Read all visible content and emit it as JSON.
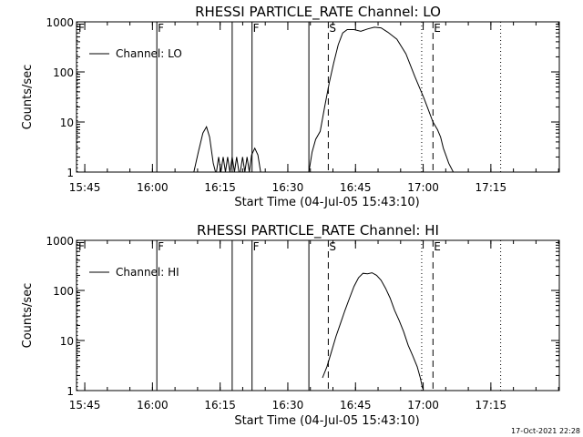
{
  "chart_data": [
    {
      "type": "line",
      "title": "RHESSI PARTICLE_RATE Channel: LO",
      "xlabel": "Start Time (04-Jul-05 15:43:10)",
      "ylabel": "Counts/sec",
      "y_scale": "log",
      "ylim": [
        1,
        1000
      ],
      "y_ticks": [
        1,
        10,
        100,
        1000
      ],
      "y_tick_labels": [
        "1",
        "10",
        "100",
        "1000"
      ],
      "x_unit": "minutes since 15:43:10",
      "xlim": [
        0,
        107
      ],
      "x_ticks": [
        1.83,
        16.83,
        31.83,
        46.83,
        61.83,
        76.83,
        91.83
      ],
      "x_tick_labels": [
        "15:45",
        "16:00",
        "16:15",
        "16:30",
        "16:45",
        "17:00",
        "17:15"
      ],
      "legend": {
        "position": "top-left",
        "entries": [
          "Channel: LO"
        ]
      },
      "series": [
        {
          "name": "Channel: LO",
          "segments": [
            [
              [
                26.0,
                1
              ],
              [
                27.0,
                2.5
              ],
              [
                28.0,
                6.0
              ],
              [
                28.8,
                8.0
              ],
              [
                29.5,
                5.0
              ],
              [
                30.3,
                1.5
              ],
              [
                30.8,
                1.0
              ]
            ],
            [
              [
                31.0,
                1
              ],
              [
                31.5,
                2
              ],
              [
                32.0,
                1
              ],
              [
                32.5,
                2
              ],
              [
                33.0,
                1
              ],
              [
                33.5,
                2
              ],
              [
                34.0,
                1
              ],
              [
                34.5,
                2
              ],
              [
                35.0,
                1
              ],
              [
                35.5,
                2
              ],
              [
                36.0,
                1
              ]
            ],
            [
              [
                36.3,
                1
              ],
              [
                36.8,
                2
              ],
              [
                37.3,
                1
              ],
              [
                37.8,
                2
              ],
              [
                38.3,
                1
              ],
              [
                38.8,
                2.2
              ],
              [
                39.5,
                3.0
              ],
              [
                40.2,
                2.2
              ],
              [
                40.8,
                1
              ]
            ],
            [
              [
                51.5,
                1.0
              ],
              [
                52.2,
                2.5
              ],
              [
                53.0,
                4.5
              ],
              [
                54.0,
                6.5
              ],
              [
                55.0,
                20
              ],
              [
                56.0,
                60
              ],
              [
                57.0,
                150
              ],
              [
                58.0,
                350
              ],
              [
                59.0,
                600
              ],
              [
                60.0,
                700
              ],
              [
                61.5,
                700
              ],
              [
                63.0,
                650
              ],
              [
                64.5,
                720
              ],
              [
                66.0,
                780
              ],
              [
                67.5,
                760
              ],
              [
                69.0,
                620
              ],
              [
                71.0,
                450
              ],
              [
                73.0,
                230
              ],
              [
                75.0,
                80
              ],
              [
                77.0,
                30
              ],
              [
                79.0,
                10
              ],
              [
                80.0,
                7
              ],
              [
                80.7,
                5
              ],
              [
                81.3,
                3
              ],
              [
                82.0,
                2
              ],
              [
                82.5,
                1.5
              ],
              [
                83.5,
                1.0
              ]
            ]
          ]
        }
      ],
      "annotations": [
        {
          "label": "F",
          "x": 0.2,
          "style": "dotted"
        },
        {
          "label": "F",
          "x": 17.8,
          "style": "solid"
        },
        {
          "label": "",
          "x": 34.5,
          "style": "solid"
        },
        {
          "label": "F",
          "x": 38.9,
          "style": "solid"
        },
        {
          "label": "",
          "x": 51.5,
          "style": "solid"
        },
        {
          "label": "S",
          "x": 55.8,
          "style": "dashed"
        },
        {
          "label": "",
          "x": 76.5,
          "style": "dotted"
        },
        {
          "label": "E",
          "x": 79.0,
          "style": "dashed"
        },
        {
          "label": "",
          "x": 94.0,
          "style": "dotted"
        }
      ]
    },
    {
      "type": "line",
      "title": "RHESSI PARTICLE_RATE Channel: HI",
      "xlabel": "Start Time (04-Jul-05 15:43:10)",
      "ylabel": "Counts/sec",
      "y_scale": "log",
      "ylim": [
        1,
        1000
      ],
      "y_ticks": [
        1,
        10,
        100,
        1000
      ],
      "y_tick_labels": [
        "1",
        "10",
        "100",
        "1000"
      ],
      "x_unit": "minutes since 15:43:10",
      "xlim": [
        0,
        107
      ],
      "x_ticks": [
        1.83,
        16.83,
        31.83,
        46.83,
        61.83,
        76.83,
        91.83
      ],
      "x_tick_labels": [
        "15:45",
        "16:00",
        "16:15",
        "16:30",
        "16:45",
        "17:00",
        "17:15"
      ],
      "legend": {
        "position": "top-left",
        "entries": [
          "Channel: HI"
        ]
      },
      "series": [
        {
          "name": "Channel: HI",
          "segments": [
            [
              [
                54.5,
                1.8
              ],
              [
                55.5,
                3
              ],
              [
                56.5,
                6
              ],
              [
                57.5,
                12
              ],
              [
                58.5,
                22
              ],
              [
                59.5,
                40
              ],
              [
                60.5,
                70
              ],
              [
                61.5,
                120
              ],
              [
                62.5,
                180
              ],
              [
                63.5,
                220
              ],
              [
                64.5,
                215
              ],
              [
                65.5,
                225
              ],
              [
                66.5,
                200
              ],
              [
                67.5,
                160
              ],
              [
                68.5,
                110
              ],
              [
                69.5,
                70
              ],
              [
                70.5,
                40
              ],
              [
                71.5,
                25
              ],
              [
                72.5,
                15
              ],
              [
                73.5,
                8
              ],
              [
                74.5,
                5
              ],
              [
                75.5,
                3
              ],
              [
                76.2,
                1.8
              ],
              [
                76.7,
                1.1
              ]
            ]
          ]
        }
      ],
      "annotations": [
        {
          "label": "F",
          "x": 0.2,
          "style": "dotted"
        },
        {
          "label": "F",
          "x": 17.8,
          "style": "solid"
        },
        {
          "label": "",
          "x": 34.5,
          "style": "solid"
        },
        {
          "label": "F",
          "x": 38.9,
          "style": "solid"
        },
        {
          "label": "",
          "x": 51.5,
          "style": "solid"
        },
        {
          "label": "S",
          "x": 55.8,
          "style": "dashed"
        },
        {
          "label": "",
          "x": 76.5,
          "style": "dotted"
        },
        {
          "label": "E",
          "x": 79.0,
          "style": "dashed"
        },
        {
          "label": "",
          "x": 94.0,
          "style": "dotted"
        }
      ]
    }
  ],
  "footer": {
    "timestamp": "17-Oct-2021 22:28"
  }
}
